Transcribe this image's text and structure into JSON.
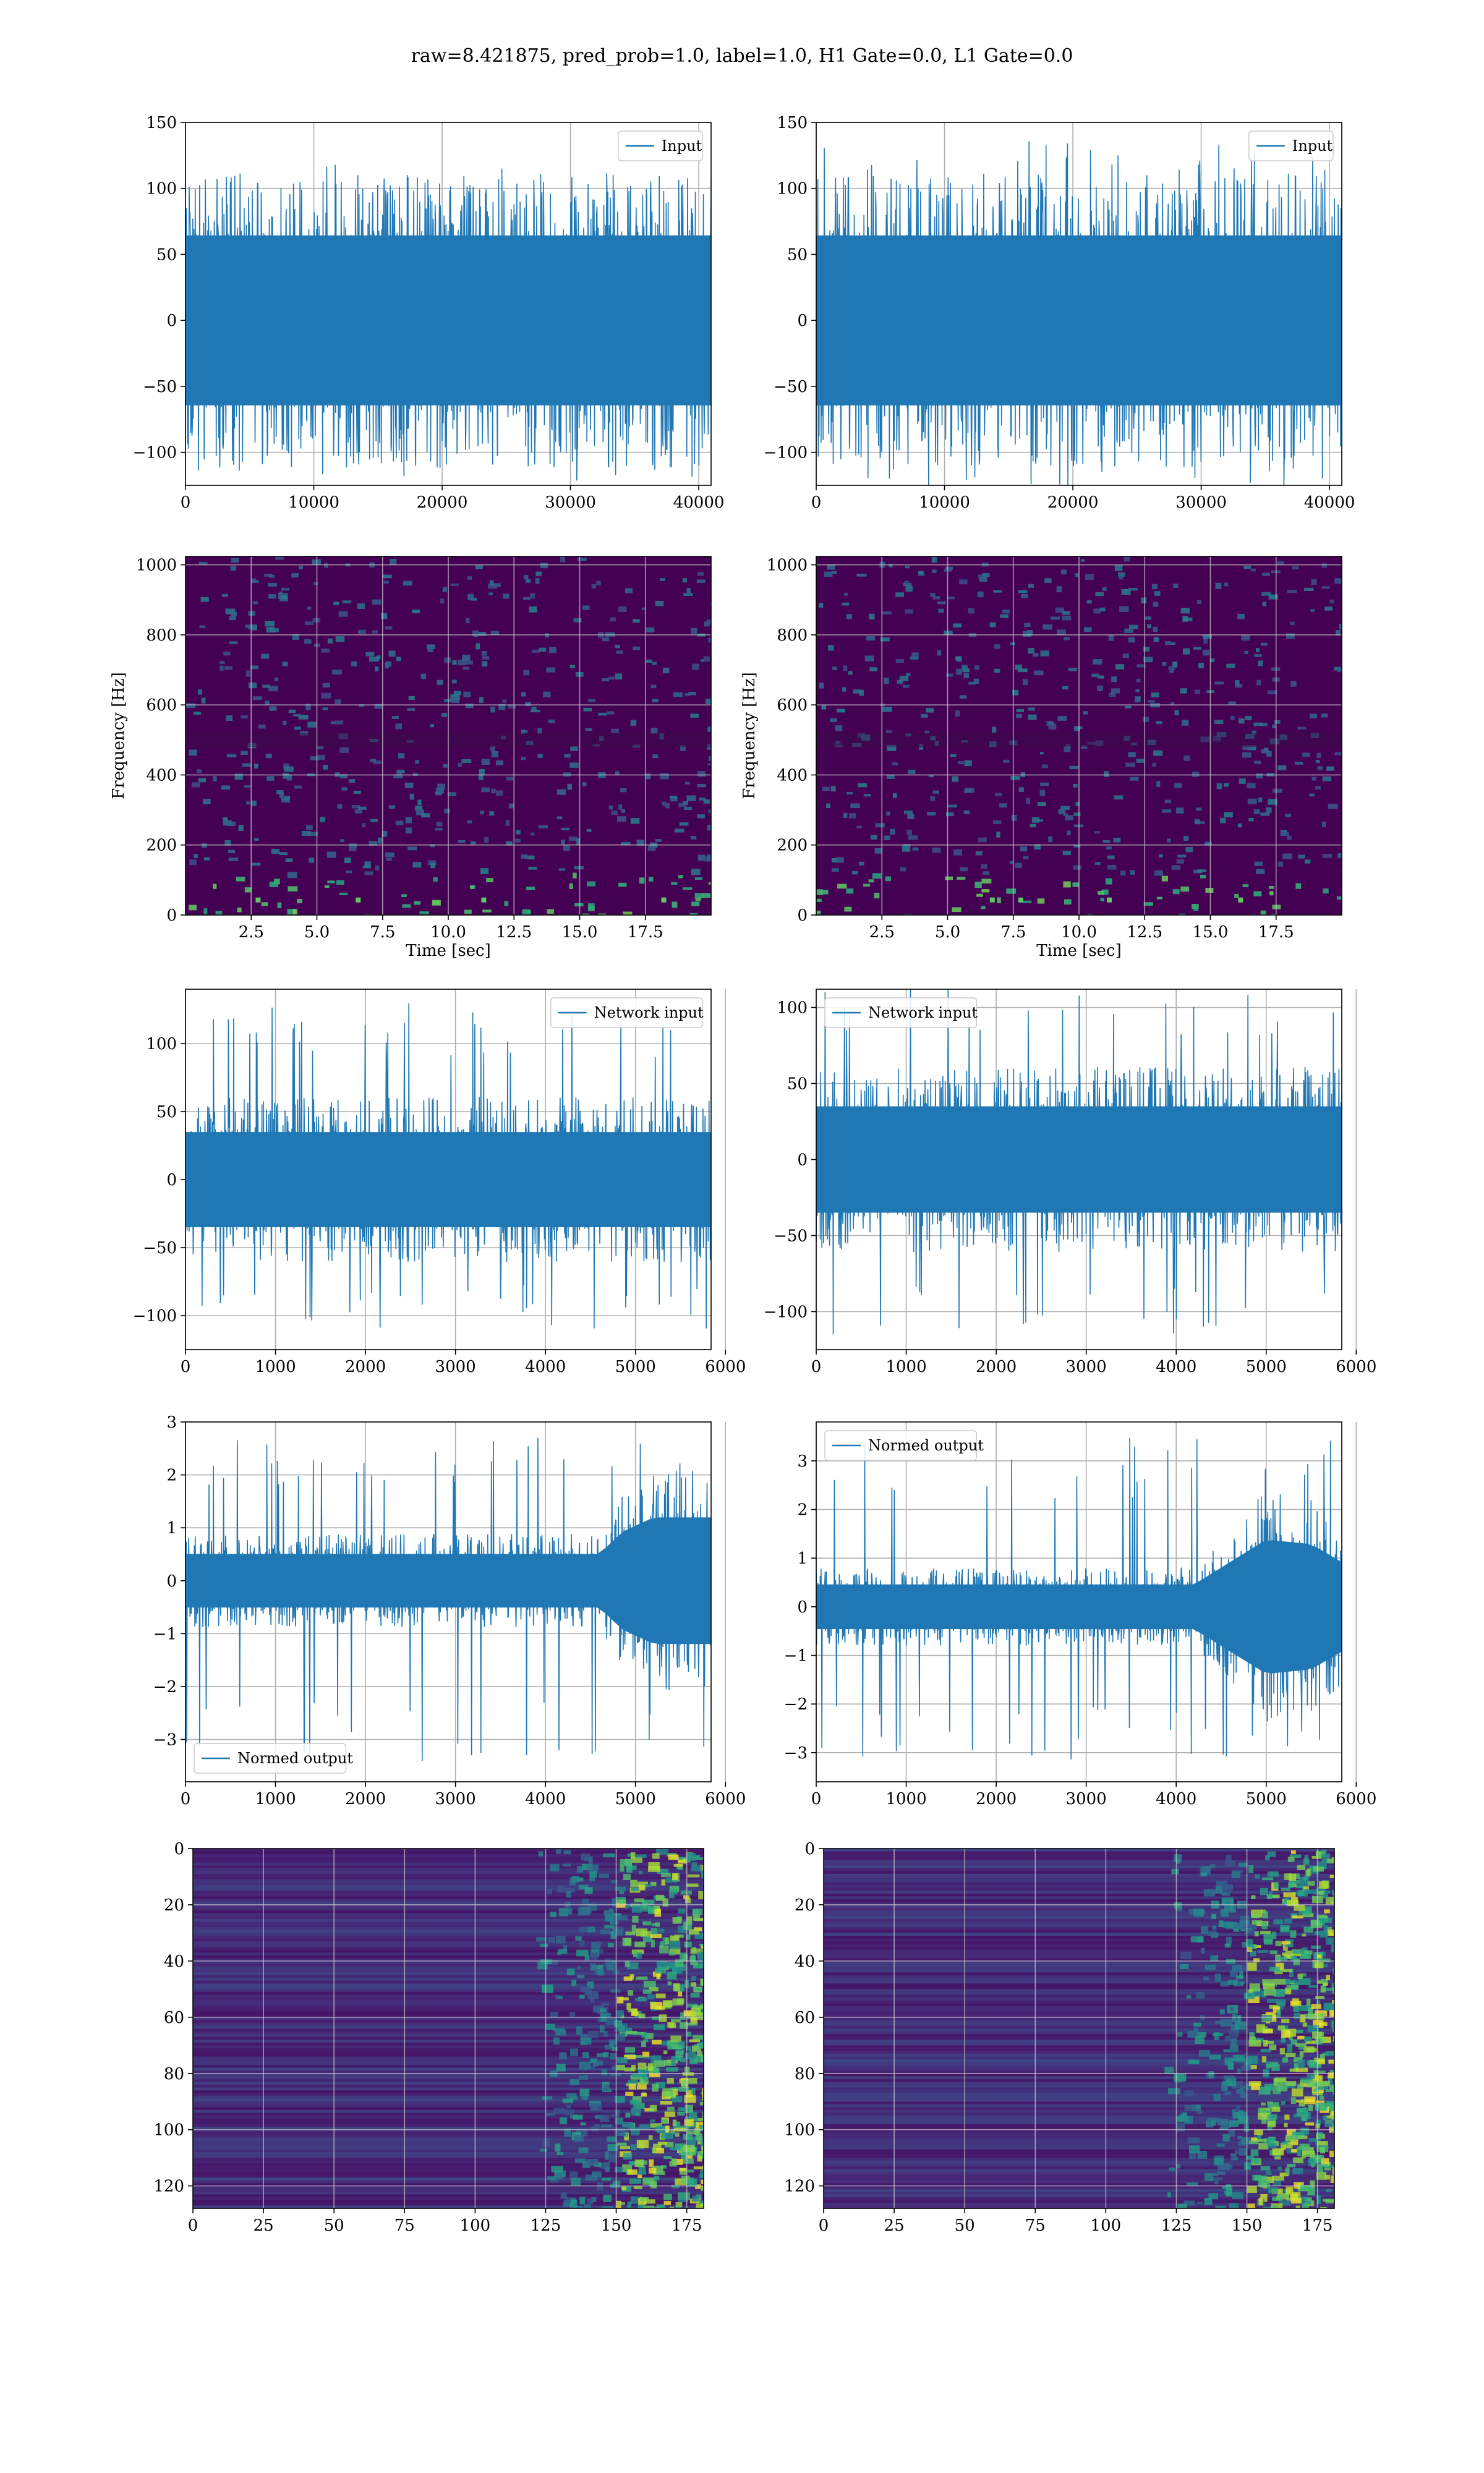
{
  "figure": {
    "suptitle": "raw=8.421875, pred_prob=1.0, label=1.0, H1 Gate=0.0, L1 Gate=0.0"
  },
  "colors": {
    "line": "#1f77b4",
    "grid": "#b0b0b0",
    "spec_bg": "#440154",
    "spec_mid": "#3b528b",
    "spec_teal": "#21918c",
    "spec_green": "#5ec962",
    "spec_yellow": "#fde725"
  },
  "chart_data": [
    {
      "id": "input-h1",
      "type": "line",
      "title": "",
      "xlabel": "",
      "ylabel": "",
      "xlim": [
        0,
        40960
      ],
      "ylim": [
        -125,
        150
      ],
      "xticks": [
        0,
        10000,
        20000,
        30000,
        40000
      ],
      "yticks": [
        -100,
        -50,
        0,
        50,
        100,
        150
      ],
      "grid": true,
      "legend_placement": "top-right",
      "series": [
        {
          "name": "Input",
          "values": []
        }
      ],
      "envelope": {
        "x": [
          0,
          40960
        ],
        "upper": [
          70,
          70
        ],
        "lower": [
          -70,
          -70
        ],
        "spike_max": 118,
        "spike_min": -122
      }
    },
    {
      "id": "input-l1",
      "type": "line",
      "title": "",
      "xlabel": "",
      "ylabel": "",
      "xlim": [
        0,
        40960
      ],
      "ylim": [
        -125,
        150
      ],
      "xticks": [
        0,
        10000,
        20000,
        30000,
        40000
      ],
      "yticks": [
        -100,
        -50,
        0,
        50,
        100,
        150
      ],
      "grid": true,
      "legend_placement": "top-right",
      "series": [
        {
          "name": "Input",
          "values": []
        }
      ],
      "envelope": {
        "x": [
          0,
          40960
        ],
        "upper": [
          70,
          70
        ],
        "lower": [
          -70,
          -70
        ],
        "spike_max": 138,
        "spike_min": -128
      }
    },
    {
      "id": "spectrogram-h1",
      "type": "heatmap",
      "title": "",
      "xlabel": "Time [sec]",
      "ylabel": "Frequency [Hz]",
      "xlim": [
        0,
        20
      ],
      "ylim": [
        0,
        1024
      ],
      "xticks": [
        2.5,
        5.0,
        7.5,
        10.0,
        12.5,
        15.0,
        17.5
      ],
      "yticks": [
        0,
        200,
        400,
        600,
        800,
        1000
      ],
      "grid": true,
      "colormap": "viridis"
    },
    {
      "id": "spectrogram-l1",
      "type": "heatmap",
      "title": "",
      "xlabel": "Time [sec]",
      "ylabel": "Frequency [Hz]",
      "xlim": [
        0,
        20
      ],
      "ylim": [
        0,
        1024
      ],
      "xticks": [
        2.5,
        5.0,
        7.5,
        10.0,
        12.5,
        15.0,
        17.5
      ],
      "yticks": [
        0,
        200,
        400,
        600,
        800,
        1000
      ],
      "grid": true,
      "colormap": "viridis"
    },
    {
      "id": "network-input-h1",
      "type": "line",
      "title": "",
      "xlabel": "",
      "ylabel": "",
      "xlim": [
        0,
        5840
      ],
      "ylim": [
        -125,
        140
      ],
      "xticks": [
        0,
        1000,
        2000,
        3000,
        4000,
        5000,
        6000
      ],
      "yticks": [
        -100,
        -50,
        0,
        50,
        100
      ],
      "grid": true,
      "legend_placement": "top-right",
      "series": [
        {
          "name": "Network input",
          "values": []
        }
      ],
      "envelope": {
        "x": [
          0,
          5840
        ],
        "upper": [
          38,
          38
        ],
        "lower": [
          -38,
          -38
        ],
        "spike_max": 130,
        "spike_min": -110
      }
    },
    {
      "id": "network-input-l1",
      "type": "line",
      "title": "",
      "xlabel": "",
      "ylabel": "",
      "xlim": [
        0,
        5840
      ],
      "ylim": [
        -125,
        112
      ],
      "xticks": [
        0,
        1000,
        2000,
        3000,
        4000,
        5000,
        6000
      ],
      "yticks": [
        -100,
        -50,
        0,
        50,
        100
      ],
      "grid": true,
      "legend_placement": "top-left",
      "series": [
        {
          "name": "Network input",
          "values": []
        }
      ],
      "envelope": {
        "x": [
          0,
          5840
        ],
        "upper": [
          38,
          38
        ],
        "lower": [
          -38,
          -38
        ],
        "spike_max": 115,
        "spike_min": -118
      }
    },
    {
      "id": "normed-output-h1",
      "type": "line",
      "title": "",
      "xlabel": "",
      "ylabel": "",
      "xlim": [
        0,
        5840
      ],
      "ylim": [
        -3.8,
        3.0
      ],
      "xticks": [
        0,
        1000,
        2000,
        3000,
        4000,
        5000,
        6000
      ],
      "yticks": [
        -3,
        -2,
        -1,
        0,
        1,
        2,
        3
      ],
      "grid": true,
      "legend_placement": "bottom-left",
      "series": [
        {
          "name": "Normed output",
          "values": []
        }
      ],
      "envelope": {
        "x": [
          0,
          4600,
          4850,
          5200,
          5840
        ],
        "upper": [
          0.55,
          0.55,
          1.0,
          1.3,
          1.3
        ],
        "lower": [
          -0.55,
          -0.55,
          -1.0,
          -1.3,
          -1.3
        ],
        "spike_max": 2.7,
        "spike_min": -3.5
      }
    },
    {
      "id": "normed-output-l1",
      "type": "line",
      "title": "",
      "xlabel": "",
      "ylabel": "",
      "xlim": [
        0,
        5840
      ],
      "ylim": [
        -3.6,
        3.8
      ],
      "xticks": [
        0,
        1000,
        2000,
        3000,
        4000,
        5000,
        6000
      ],
      "yticks": [
        -3,
        -2,
        -1,
        0,
        1,
        2,
        3
      ],
      "grid": true,
      "legend_placement": "top-left",
      "series": [
        {
          "name": "Normed output",
          "values": []
        }
      ],
      "envelope": {
        "x": [
          0,
          4200,
          4600,
          5000,
          5500,
          5840
        ],
        "upper": [
          0.5,
          0.5,
          1.0,
          1.5,
          1.4,
          1.0
        ],
        "lower": [
          -0.5,
          -0.5,
          -1.0,
          -1.5,
          -1.4,
          -1.0
        ],
        "spike_max": 3.5,
        "spike_min": -3.2
      }
    },
    {
      "id": "feature-map-h1",
      "type": "heatmap",
      "title": "",
      "xlabel": "",
      "ylabel": "",
      "xlim": [
        0,
        181
      ],
      "ylim": [
        128,
        0
      ],
      "xticks": [
        0,
        25,
        50,
        75,
        100,
        125,
        150,
        175
      ],
      "yticks": [
        0,
        20,
        40,
        60,
        80,
        100,
        120
      ],
      "grid": true,
      "colormap": "viridis"
    },
    {
      "id": "feature-map-l1",
      "type": "heatmap",
      "title": "",
      "xlabel": "",
      "ylabel": "",
      "xlim": [
        0,
        181
      ],
      "ylim": [
        128,
        0
      ],
      "xticks": [
        0,
        25,
        50,
        75,
        100,
        125,
        150,
        175
      ],
      "yticks": [
        0,
        20,
        40,
        60,
        80,
        100,
        120
      ],
      "grid": true,
      "colormap": "viridis"
    }
  ]
}
